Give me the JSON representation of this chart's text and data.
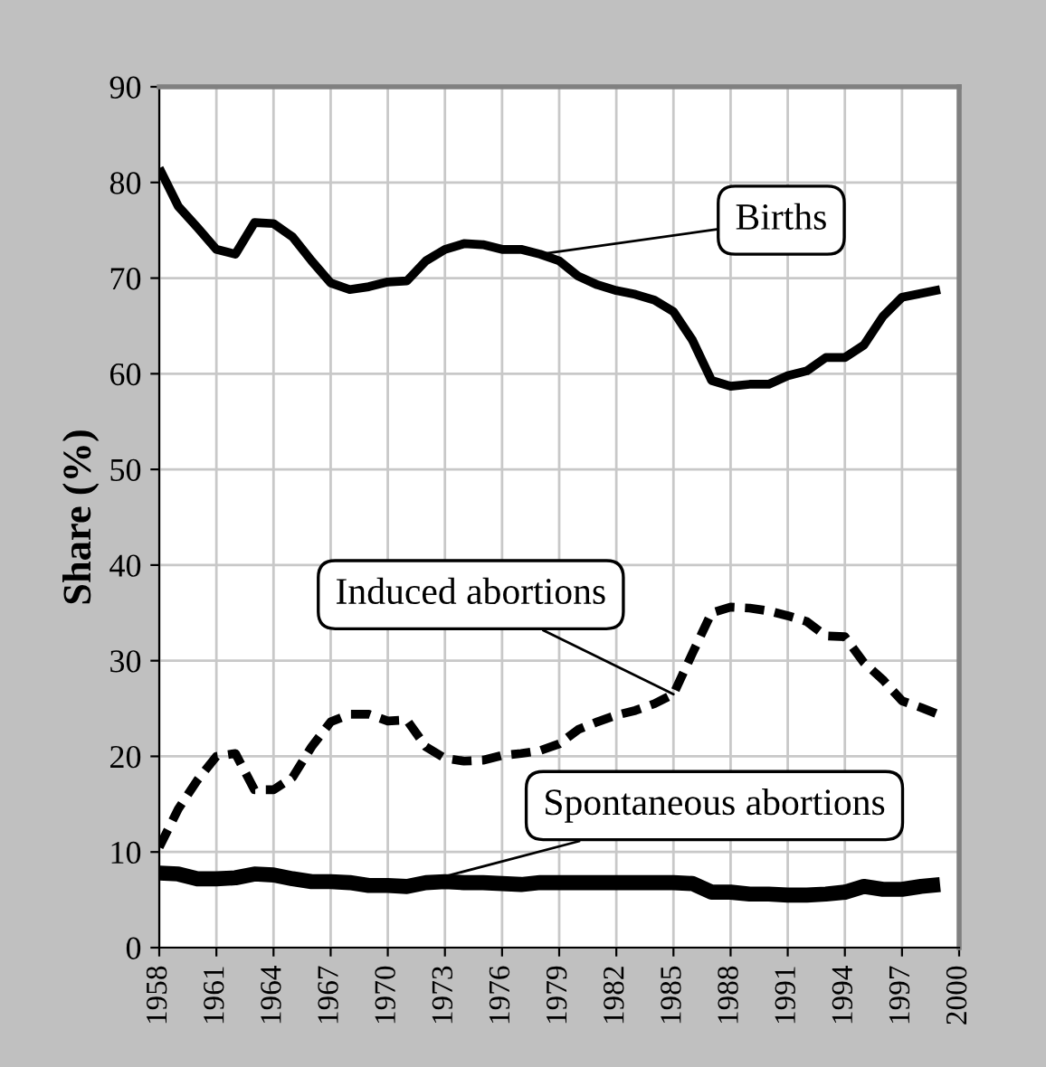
{
  "chart_data": {
    "type": "line",
    "ylabel": "Share (%)",
    "x": [
      1958,
      1959,
      1960,
      1961,
      1962,
      1963,
      1964,
      1965,
      1966,
      1967,
      1968,
      1969,
      1970,
      1971,
      1972,
      1973,
      1974,
      1975,
      1976,
      1977,
      1978,
      1979,
      1980,
      1981,
      1982,
      1983,
      1984,
      1985,
      1986,
      1987,
      1988,
      1989,
      1990,
      1991,
      1992,
      1993,
      1994,
      1995,
      1996,
      1997,
      1998,
      1999
    ],
    "series": [
      {
        "name": "Births",
        "color": "#000000",
        "line_style": "solid",
        "values": [
          81.5,
          77.5,
          75.3,
          73,
          72.5,
          75.8,
          75.7,
          74.3,
          71.8,
          69.5,
          68.8,
          69.1,
          69.6,
          69.7,
          71.8,
          73,
          73.6,
          73.5,
          73,
          73,
          72.5,
          71.8,
          70.2,
          69.3,
          68.7,
          68.3,
          67.7,
          66.5,
          63.5,
          59.3,
          58.7,
          58.9,
          58.9,
          59.8,
          60.3,
          61.7,
          61.7,
          63,
          66,
          68,
          68.4,
          68.8
        ]
      },
      {
        "name": "Induced abortions",
        "color": "#000000",
        "line_style": "dashed",
        "values": [
          10.5,
          14.5,
          17.5,
          20,
          20.3,
          16.5,
          16.5,
          17.8,
          21,
          23.6,
          24.4,
          24.4,
          23.7,
          23.8,
          21,
          19.8,
          19.5,
          19.6,
          20.1,
          20.3,
          20.6,
          21.3,
          22.8,
          23.6,
          24.3,
          24.8,
          25.5,
          26.5,
          30.8,
          35,
          35.6,
          35.5,
          35.2,
          34.7,
          34.1,
          32.6,
          32.5,
          29.8,
          28,
          25.8,
          25.1,
          24.3
        ]
      },
      {
        "name": "Spontaneous abortions",
        "color": "#000000",
        "line_style": "solid",
        "values": [
          7.8,
          7.7,
          7.2,
          7.2,
          7.3,
          7.7,
          7.6,
          7.2,
          6.9,
          6.9,
          6.8,
          6.5,
          6.5,
          6.4,
          6.8,
          6.9,
          6.8,
          6.8,
          6.7,
          6.6,
          6.8,
          6.8,
          6.8,
          6.8,
          6.8,
          6.8,
          6.8,
          6.8,
          6.7,
          5.8,
          5.8,
          5.6,
          5.6,
          5.5,
          5.5,
          5.6,
          5.8,
          6.4,
          6.1,
          6.1,
          6.4,
          6.6
        ]
      }
    ],
    "xlim": [
      1958,
      2000
    ],
    "xticks": [
      1958,
      1961,
      1964,
      1967,
      1970,
      1973,
      1976,
      1979,
      1982,
      1985,
      1988,
      1991,
      1994,
      1997,
      2000
    ],
    "ylim": [
      0,
      90
    ],
    "yticks": [
      0,
      10,
      20,
      30,
      40,
      50,
      60,
      70,
      80,
      90
    ],
    "grid": true,
    "marker": "none"
  }
}
